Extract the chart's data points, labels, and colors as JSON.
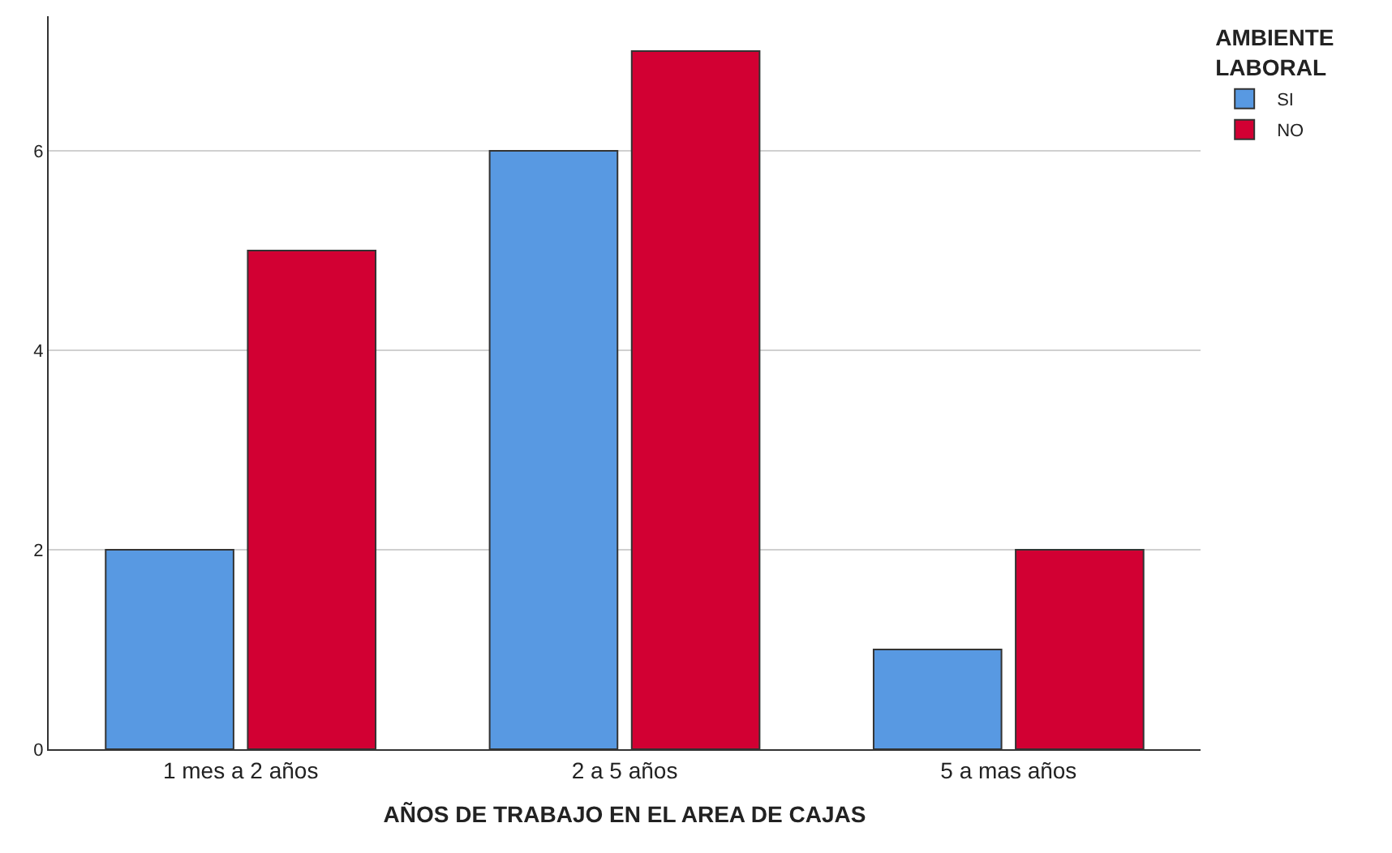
{
  "chart_data": {
    "type": "bar",
    "xlabel": "AÑOS DE TRABAJO EN EL AREA DE CAJAS",
    "legend_title": "AMBIENTE LABORAL",
    "categories": [
      "1 mes a 2 años",
      "2 a 5 años",
      "5 a mas años"
    ],
    "series": [
      {
        "name": "SI",
        "color": "#5899e2",
        "values": [
          2,
          6,
          1
        ]
      },
      {
        "name": "NO",
        "color": "#d20033",
        "values": [
          5,
          7,
          2
        ]
      }
    ],
    "ylim": [
      0,
      7.35
    ],
    "yticks": [
      0,
      2,
      4,
      6
    ],
    "grid": "y",
    "legend": "top right"
  }
}
